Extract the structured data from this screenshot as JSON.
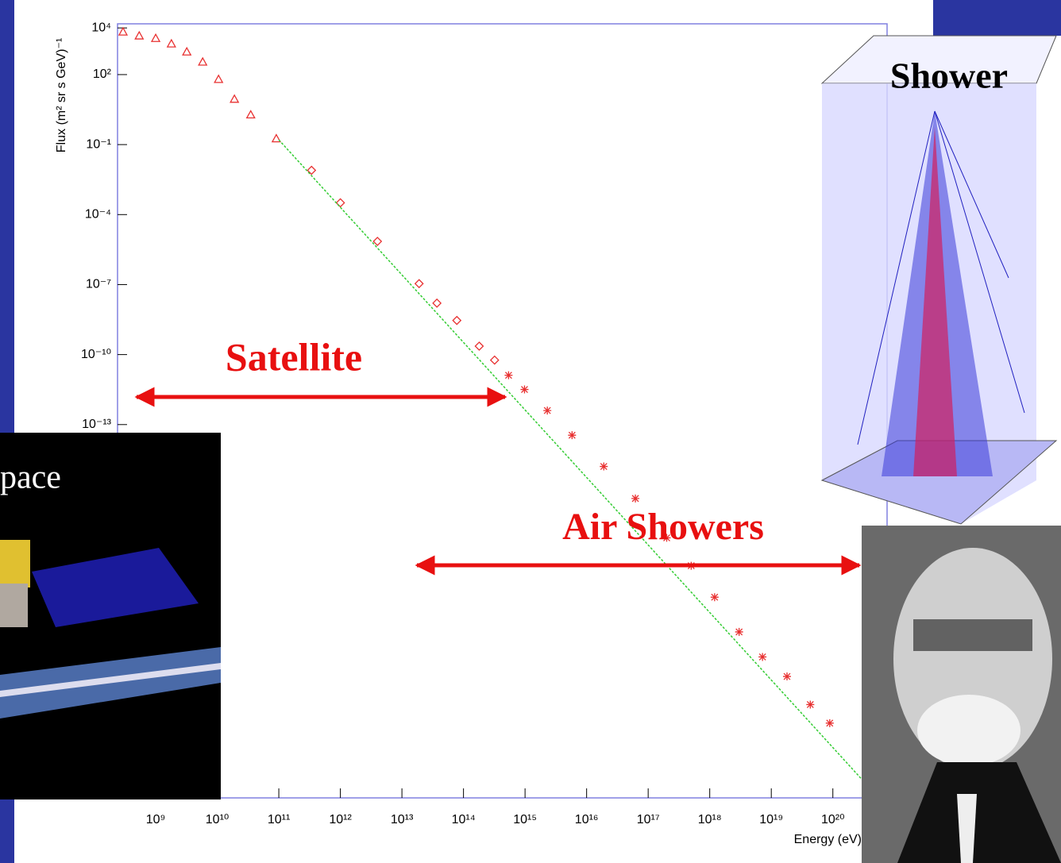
{
  "chart_data": {
    "type": "scatter",
    "y_label": "Flux (m² sr s GeV)⁻¹",
    "x_label": "Energy (eV)",
    "annotations": [
      "Satellite",
      "Air Showers",
      "Shower",
      "pace"
    ],
    "log_x": true,
    "log_y": true,
    "xlim": [
      240000000.0,
      7.6e+20
    ],
    "ylim": [
      1e-29,
      15000.0
    ],
    "xticks": [
      {
        "value": 1000000000.0,
        "label": "10⁹"
      },
      {
        "value": 10000000000.0,
        "label": "10¹⁰"
      },
      {
        "value": 100000000000.0,
        "label": "10¹¹"
      },
      {
        "value": 1000000000000.0,
        "label": "10¹²"
      },
      {
        "value": 10000000000000.0,
        "label": "10¹³"
      },
      {
        "value": 100000000000000.0,
        "label": "10¹⁴"
      },
      {
        "value": 1000000000000000.0,
        "label": "10¹⁵"
      },
      {
        "value": 1e+16,
        "label": "10¹⁶"
      },
      {
        "value": 1e+17,
        "label": "10¹⁷"
      },
      {
        "value": 1e+18,
        "label": "10¹⁸"
      },
      {
        "value": 1e+19,
        "label": "10¹⁹"
      },
      {
        "value": 1e+20,
        "label": "10²⁰"
      }
    ],
    "yticks": [
      {
        "value": 10000.0,
        "label": "10⁴"
      },
      {
        "value": 100.0,
        "label": "10²"
      },
      {
        "value": 0.1,
        "label": "10⁻¹"
      },
      {
        "value": 0.0001,
        "label": "10⁻⁴"
      },
      {
        "value": 1e-07,
        "label": "10⁻⁷"
      },
      {
        "value": 1e-10,
        "label": "10⁻¹⁰"
      },
      {
        "value": 1e-13,
        "label": "10⁻¹³"
      }
    ],
    "series": [
      {
        "color": "#e83030",
        "marker": "triangle",
        "x": [
          295000000.0,
          540000000.0,
          1000000000.0,
          1800000000.0,
          3200000000.0,
          5800000000.0,
          10500000000.0,
          19000000000.0,
          35000000000.0,
          91000000000.0
        ],
        "values": [
          6800,
          4600,
          3600,
          2100,
          950,
          350,
          63,
          8.9,
          1.9,
          0.18
        ]
      },
      {
        "color": "#e83030",
        "marker": "diamond",
        "x": [
          340000000000.0,
          1000000000000.0,
          4000000000000.0,
          19000000000000.0,
          37000000000000.0,
          78000000000000.0,
          180000000000000.0,
          320000000000000.0
        ],
        "values": [
          0.0079,
          0.00032,
          7.1e-06,
          1.1e-07,
          1.6e-08,
          2.9e-09,
          2.3e-10,
          5.8e-11
        ]
      },
      {
        "color": "#e83030",
        "marker": "star",
        "x": [
          540000000000000.0,
          980000000000000.0,
          2300000000000000.0,
          5800000000000000.0,
          1.9e+16,
          6.2e+16,
          2e+17,
          5e+17,
          1.2e+18,
          3e+18,
          7.2e+18,
          1.8e+19,
          4.3e+19,
          8.9e+19
        ],
        "values": [
          1.3e-11,
          3.2e-12,
          4e-13,
          3.5e-14,
          1.6e-15,
          6.8e-17,
          1.4e-18,
          8.9e-20,
          4e-21,
          1.3e-22,
          1.1e-23,
          1.6e-24,
          1e-25,
          1.6e-26
        ]
      },
      {
        "color": "#33cc33",
        "marker": "line",
        "x": [
          100000000000.0,
          3e+20
        ],
        "values": [
          0.16,
          6e-29
        ]
      }
    ]
  }
}
